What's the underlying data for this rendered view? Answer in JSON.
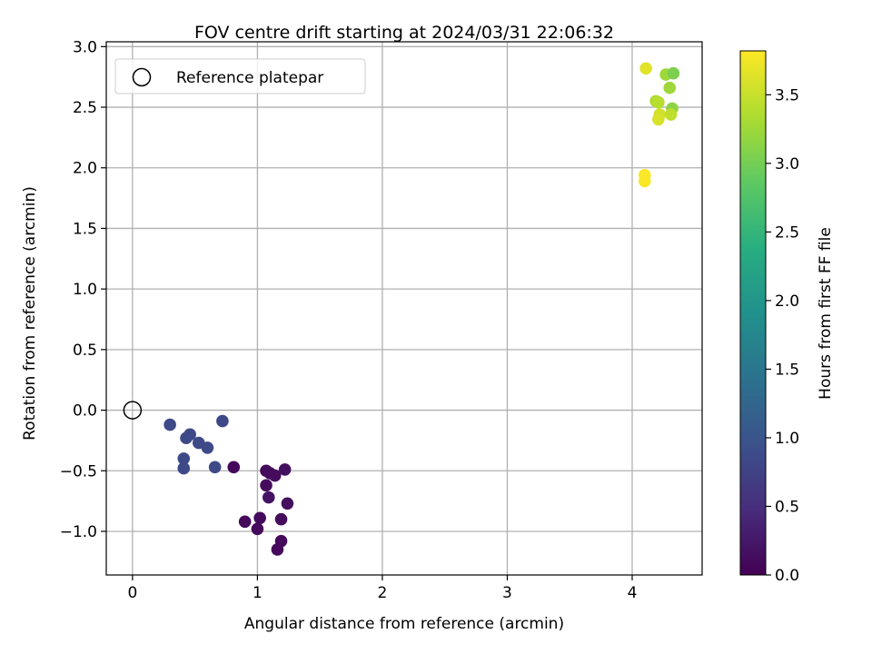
{
  "chart_data": {
    "type": "scatter",
    "title": "FOV centre drift starting at 2024/03/31 22:06:32",
    "xlabel": "Angular distance from reference (arcmin)",
    "ylabel": "Rotation from reference (arcmin)",
    "xlim": [
      -0.21,
      4.56
    ],
    "ylim": [
      -1.36,
      3.04
    ],
    "xticks": [
      "0",
      "1",
      "2",
      "3",
      "4"
    ],
    "yticks": [
      "−1.0",
      "−0.5",
      "0.0",
      "0.5",
      "1.0",
      "1.5",
      "2.0",
      "2.5",
      "3.0"
    ],
    "grid": true,
    "legend": {
      "placement": "top-left",
      "label": "Reference platepar"
    },
    "reference_point": {
      "x": 0.0,
      "y": 0.0,
      "marker": "open-circle"
    },
    "colorbar": {
      "label": "Hours from first FF file",
      "colormap": "viridis",
      "range": [
        0,
        3.82
      ],
      "ticks": [
        "0.0",
        "0.5",
        "1.0",
        "1.5",
        "2.0",
        "2.5",
        "3.0",
        "3.5"
      ]
    },
    "points": [
      {
        "x": 0.81,
        "y": -0.47,
        "h": 0.08
      },
      {
        "x": 1.07,
        "y": -0.5,
        "h": 0.1
      },
      {
        "x": 1.1,
        "y": -0.52,
        "h": 0.12
      },
      {
        "x": 1.14,
        "y": -0.54,
        "h": 0.12
      },
      {
        "x": 1.22,
        "y": -0.49,
        "h": 0.15
      },
      {
        "x": 1.07,
        "y": -0.62,
        "h": 0.12
      },
      {
        "x": 1.09,
        "y": -0.72,
        "h": 0.2
      },
      {
        "x": 1.24,
        "y": -0.77,
        "h": 0.15
      },
      {
        "x": 1.02,
        "y": -0.89,
        "h": 0.1
      },
      {
        "x": 0.9,
        "y": -0.92,
        "h": 0.08
      },
      {
        "x": 1.0,
        "y": -0.98,
        "h": 0.1
      },
      {
        "x": 1.19,
        "y": -0.9,
        "h": 0.12
      },
      {
        "x": 1.19,
        "y": -1.08,
        "h": 0.1
      },
      {
        "x": 1.16,
        "y": -1.15,
        "h": 0.08
      },
      {
        "x": 0.3,
        "y": -0.12,
        "h": 0.85
      },
      {
        "x": 0.72,
        "y": -0.09,
        "h": 0.85
      },
      {
        "x": 0.46,
        "y": -0.2,
        "h": 0.85
      },
      {
        "x": 0.43,
        "y": -0.23,
        "h": 0.85
      },
      {
        "x": 0.53,
        "y": -0.27,
        "h": 0.85
      },
      {
        "x": 0.6,
        "y": -0.31,
        "h": 0.85
      },
      {
        "x": 0.41,
        "y": -0.4,
        "h": 0.85
      },
      {
        "x": 0.41,
        "y": -0.48,
        "h": 0.85
      },
      {
        "x": 0.66,
        "y": -0.47,
        "h": 0.85
      },
      {
        "x": 4.11,
        "y": 2.82,
        "h": 3.65
      },
      {
        "x": 4.27,
        "y": 2.77,
        "h": 3.25
      },
      {
        "x": 4.33,
        "y": 2.78,
        "h": 3.05
      },
      {
        "x": 4.3,
        "y": 2.66,
        "h": 3.25
      },
      {
        "x": 4.19,
        "y": 2.55,
        "h": 3.35
      },
      {
        "x": 4.21,
        "y": 2.54,
        "h": 3.4
      },
      {
        "x": 4.32,
        "y": 2.49,
        "h": 3.15
      },
      {
        "x": 4.22,
        "y": 2.44,
        "h": 3.55
      },
      {
        "x": 4.31,
        "y": 2.44,
        "h": 3.45
      },
      {
        "x": 4.21,
        "y": 2.4,
        "h": 3.6
      },
      {
        "x": 4.1,
        "y": 1.94,
        "h": 3.8
      },
      {
        "x": 4.1,
        "y": 1.89,
        "h": 3.8
      }
    ]
  }
}
